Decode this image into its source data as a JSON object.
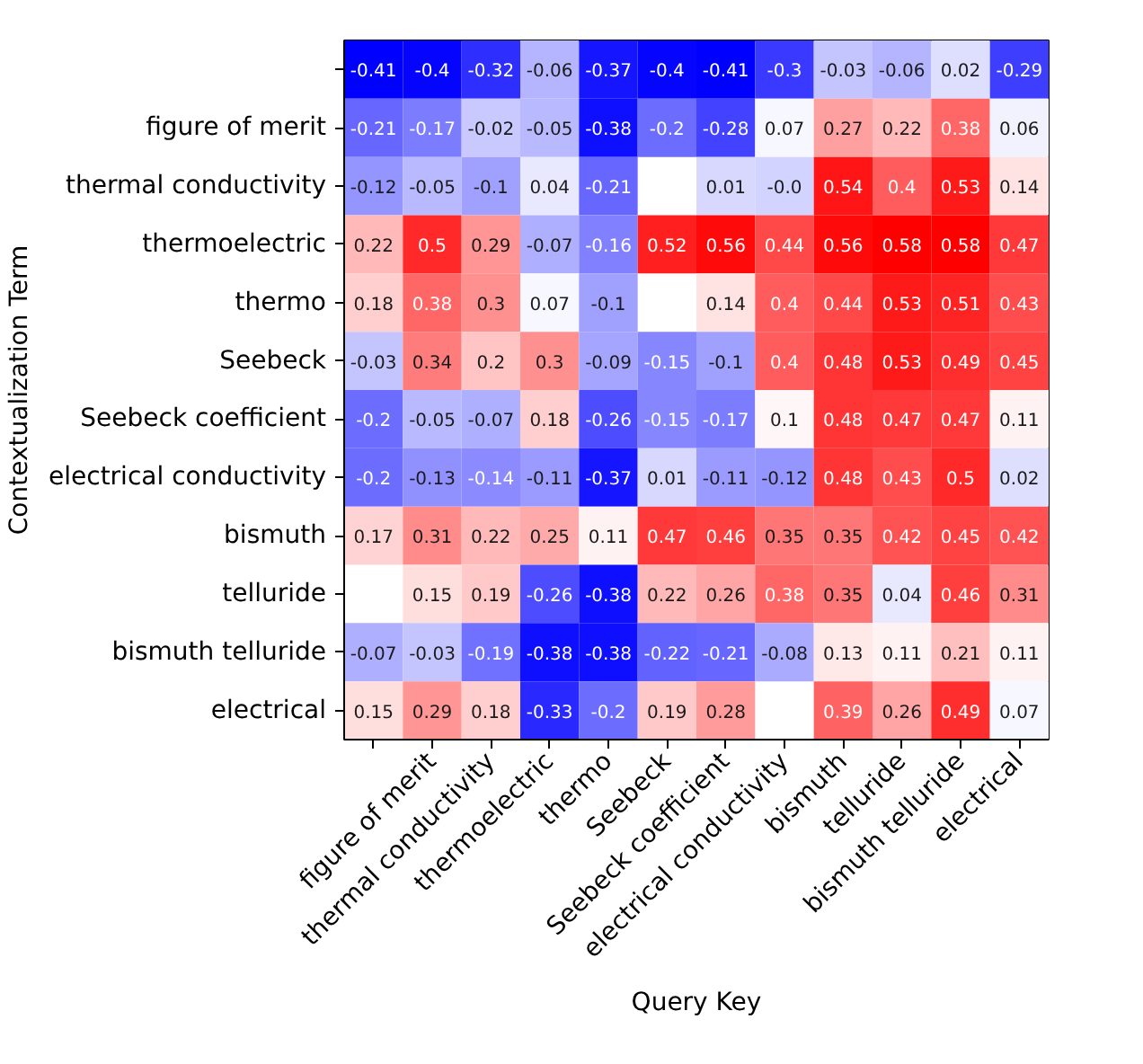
{
  "chart_data": {
    "type": "heatmap",
    "xlabel": "Query Key",
    "ylabel": "Contextualization Term",
    "data_labels": true,
    "categories": [
      null,
      "figure of merit",
      "thermal conductivity",
      "thermoelectric",
      "thermo",
      "Seebeck",
      "Seebeck coefficient",
      "electrical conductivity",
      "bismuth",
      "telluride",
      "bismuth telluride",
      "electrical"
    ],
    "y_categories": [
      null,
      "figure of merit",
      "thermal conductivity",
      "thermoelectric",
      "thermo",
      "Seebeck",
      "Seebeck coefficient",
      "electrical conductivity",
      "bismuth",
      "telluride",
      "bismuth telluride",
      "electrical"
    ],
    "cells": [
      [
        -0.41,
        -0.4,
        -0.32,
        -0.06,
        -0.37,
        -0.4,
        -0.41,
        -0.3,
        -0.03,
        -0.06,
        0.02,
        -0.29
      ],
      [
        -0.21,
        -0.17,
        -0.02,
        -0.05,
        -0.38,
        -0.2,
        -0.28,
        0.07,
        0.27,
        0.22,
        0.38,
        0.06
      ],
      [
        -0.12,
        -0.05,
        -0.1,
        0.04,
        -0.21,
        null,
        0.01,
        -0.0,
        0.54,
        0.4,
        0.53,
        0.14
      ],
      [
        0.22,
        0.5,
        0.29,
        -0.07,
        -0.16,
        0.52,
        0.56,
        0.44,
        0.56,
        0.58,
        0.58,
        0.47
      ],
      [
        0.18,
        0.38,
        0.3,
        0.07,
        -0.1,
        null,
        0.14,
        0.4,
        0.44,
        0.53,
        0.51,
        0.43
      ],
      [
        -0.03,
        0.34,
        0.2,
        0.3,
        -0.09,
        -0.15,
        -0.1,
        0.4,
        0.48,
        0.53,
        0.49,
        0.45
      ],
      [
        -0.2,
        -0.05,
        -0.07,
        0.18,
        -0.26,
        -0.15,
        -0.17,
        0.1,
        0.48,
        0.47,
        0.47,
        0.11
      ],
      [
        -0.2,
        -0.13,
        -0.14,
        -0.11,
        -0.37,
        0.01,
        -0.11,
        -0.12,
        0.48,
        0.43,
        0.5,
        0.02
      ],
      [
        0.17,
        0.31,
        0.22,
        0.25,
        0.11,
        0.47,
        0.46,
        0.35,
        0.35,
        0.42,
        0.45,
        0.42
      ],
      [
        null,
        0.15,
        0.19,
        -0.26,
        -0.38,
        0.22,
        0.26,
        0.38,
        0.35,
        0.04,
        0.46,
        0.31
      ],
      [
        -0.07,
        -0.03,
        -0.19,
        -0.38,
        -0.38,
        -0.22,
        -0.21,
        -0.08,
        0.13,
        0.11,
        0.21,
        0.11
      ],
      [
        0.15,
        0.29,
        0.18,
        -0.33,
        -0.2,
        0.19,
        0.28,
        null,
        0.39,
        0.26,
        0.49,
        0.07
      ]
    ],
    "cell_labels": [
      [
        "-0.41",
        "-0.4",
        "-0.32",
        "-0.06",
        "-0.37",
        "-0.4",
        "-0.41",
        "-0.3",
        "-0.03",
        "-0.06",
        "0.02",
        "-0.29"
      ],
      [
        "-0.21",
        "-0.17",
        "-0.02",
        "-0.05",
        "-0.38",
        "-0.2",
        "-0.28",
        "0.07",
        "0.27",
        "0.22",
        "0.38",
        "0.06"
      ],
      [
        "-0.12",
        "-0.05",
        "-0.1",
        "0.04",
        "-0.21",
        null,
        "0.01",
        "-0.0",
        "0.54",
        "0.4",
        "0.53",
        "0.14"
      ],
      [
        "0.22",
        "0.5",
        "0.29",
        "-0.07",
        "-0.16",
        "0.52",
        "0.56",
        "0.44",
        "0.56",
        "0.58",
        "0.58",
        "0.47"
      ],
      [
        "0.18",
        "0.38",
        "0.3",
        "0.07",
        "-0.1",
        null,
        "0.14",
        "0.4",
        "0.44",
        "0.53",
        "0.51",
        "0.43"
      ],
      [
        "-0.03",
        "0.34",
        "0.2",
        "0.3",
        "-0.09",
        "-0.15",
        "-0.1",
        "0.4",
        "0.48",
        "0.53",
        "0.49",
        "0.45"
      ],
      [
        "-0.2",
        "-0.05",
        "-0.07",
        "0.18",
        "-0.26",
        "-0.15",
        "-0.17",
        "0.1",
        "0.48",
        "0.47",
        "0.47",
        "0.11"
      ],
      [
        "-0.2",
        "-0.13",
        "-0.14",
        "-0.11",
        "-0.37",
        "0.01",
        "-0.11",
        "-0.12",
        "0.48",
        "0.43",
        "0.5",
        "0.02"
      ],
      [
        "0.17",
        "0.31",
        "0.22",
        "0.25",
        "0.11",
        "0.47",
        "0.46",
        "0.35",
        "0.35",
        "0.42",
        "0.45",
        "0.42"
      ],
      [
        null,
        "0.15",
        "0.19",
        "-0.26",
        "-0.38",
        "0.22",
        "0.26",
        "0.38",
        "0.35",
        "0.04",
        "0.46",
        "0.31"
      ],
      [
        "-0.07",
        "-0.03",
        "-0.19",
        "-0.38",
        "-0.38",
        "-0.22",
        "-0.21",
        "-0.08",
        "0.13",
        "0.11",
        "0.21",
        "0.11"
      ],
      [
        "0.15",
        "0.29",
        "0.18",
        "-0.33",
        "-0.2",
        "0.19",
        "0.28",
        null,
        "0.39",
        "0.26",
        "0.49",
        "0.07"
      ]
    ]
  }
}
